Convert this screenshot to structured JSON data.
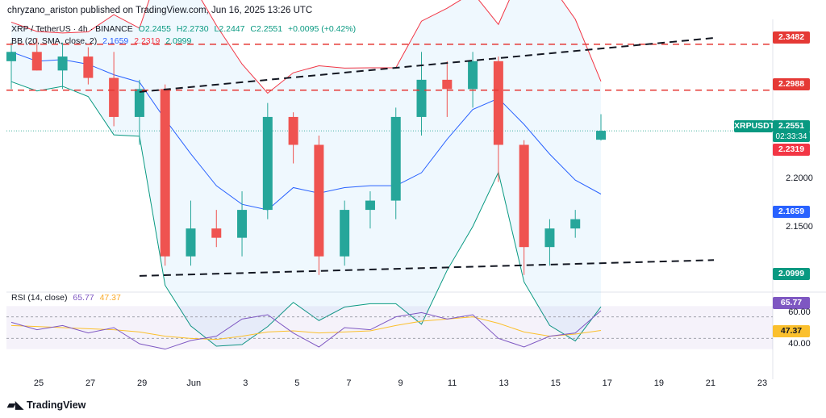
{
  "header": {
    "publisher_line": "chryzano_ariston published on TradingView.com, Jun 16, 2025 13:26 UTC"
  },
  "legend": {
    "symbol": "XRP / TetherUS · 4h · BINANCE",
    "open": "O2.2455",
    "high": "H2.2730",
    "low": "L2.2447",
    "close": "C2.2551",
    "change": "+0.0095 (+0.42%)",
    "bb_label": "BB (20, SMA, close, 2)",
    "bb_basis": "2.1659",
    "bb_upper": "2.2319",
    "bb_lower": "2.0999",
    "rsi_label": "RSI (14, close)",
    "rsi_value": "65.77",
    "rsi_ma": "47.37"
  },
  "price_axis": {
    "levels": [
      "2.2000",
      "2.1500"
    ],
    "tags": {
      "resistance_high": "2.3482",
      "resistance_low": "2.2988",
      "symbol": "XRPUSDT",
      "last_price": "2.2551",
      "countdown": "02:33:34",
      "bb_upper": "2.2319",
      "bb_basis": "2.1659",
      "bb_lower": "2.0999"
    }
  },
  "rsi_axis": {
    "value": "65.77",
    "ma": "47.37",
    "upper": "60.00",
    "lower": "40.00"
  },
  "time_axis": [
    "25",
    "27",
    "29",
    "Jun",
    "3",
    "5",
    "7",
    "9",
    "11",
    "13",
    "15",
    "17",
    "19",
    "21",
    "23"
  ],
  "brand": "TradingView",
  "colors": {
    "up": "#26a69a",
    "down": "#ef5350",
    "bb_upper": "#f23645",
    "bb_basis": "#2962ff",
    "bb_lower": "#089981",
    "rsi": "#7e57c2",
    "rsi_ma": "#fbc02d",
    "resistance": "#e53935"
  },
  "chart_data": {
    "type": "candlestick",
    "symbol": "XRP / TetherUS",
    "interval": "4h",
    "ylim": [
      2.085,
      2.375
    ],
    "resistance_levels": [
      2.3482,
      2.2988
    ],
    "trendlines": [
      {
        "from": [
          "May 29",
          2.297
        ],
        "to": [
          "Jun 20",
          2.355
        ]
      },
      {
        "from": [
          "May 29",
          2.099
        ],
        "to": [
          "Jun 20",
          2.116
        ]
      }
    ],
    "candles": [
      {
        "t": "May 24",
        "o": 2.33,
        "h": 2.35,
        "l": 2.3,
        "c": 2.34
      },
      {
        "t": "May 25",
        "o": 2.34,
        "h": 2.355,
        "l": 2.32,
        "c": 2.32
      },
      {
        "t": "May 26",
        "o": 2.32,
        "h": 2.35,
        "l": 2.3,
        "c": 2.335
      },
      {
        "t": "May 27",
        "o": 2.335,
        "h": 2.345,
        "l": 2.305,
        "c": 2.312
      },
      {
        "t": "May 28",
        "o": 2.312,
        "h": 2.34,
        "l": 2.26,
        "c": 2.27
      },
      {
        "t": "May 29",
        "o": 2.27,
        "h": 2.31,
        "l": 2.24,
        "c": 2.3
      },
      {
        "t": "May 30",
        "o": 2.3,
        "h": 2.305,
        "l": 2.11,
        "c": 2.12
      },
      {
        "t": "May 31",
        "o": 2.12,
        "h": 2.18,
        "l": 2.11,
        "c": 2.15
      },
      {
        "t": "Jun 1",
        "o": 2.15,
        "h": 2.17,
        "l": 2.13,
        "c": 2.14
      },
      {
        "t": "Jun 2",
        "o": 2.14,
        "h": 2.19,
        "l": 2.12,
        "c": 2.17
      },
      {
        "t": "Jun 3",
        "o": 2.17,
        "h": 2.285,
        "l": 2.16,
        "c": 2.27
      },
      {
        "t": "Jun 4",
        "o": 2.27,
        "h": 2.275,
        "l": 2.22,
        "c": 2.24
      },
      {
        "t": "Jun 5",
        "o": 2.24,
        "h": 2.25,
        "l": 2.1,
        "c": 2.12
      },
      {
        "t": "Jun 6",
        "o": 2.12,
        "h": 2.18,
        "l": 2.11,
        "c": 2.17
      },
      {
        "t": "Jun 7",
        "o": 2.17,
        "h": 2.19,
        "l": 2.15,
        "c": 2.18
      },
      {
        "t": "Jun 8",
        "o": 2.18,
        "h": 2.28,
        "l": 2.16,
        "c": 2.27
      },
      {
        "t": "Jun 9",
        "o": 2.27,
        "h": 2.34,
        "l": 2.25,
        "c": 2.31
      },
      {
        "t": "Jun 10",
        "o": 2.31,
        "h": 2.33,
        "l": 2.27,
        "c": 2.3
      },
      {
        "t": "Jun 11",
        "o": 2.3,
        "h": 2.34,
        "l": 2.28,
        "c": 2.33
      },
      {
        "t": "Jun 12",
        "o": 2.33,
        "h": 2.335,
        "l": 2.2,
        "c": 2.24
      },
      {
        "t": "Jun 13",
        "o": 2.24,
        "h": 2.245,
        "l": 2.1,
        "c": 2.13
      },
      {
        "t": "Jun 14",
        "o": 2.13,
        "h": 2.16,
        "l": 2.11,
        "c": 2.15
      },
      {
        "t": "Jun 15",
        "o": 2.15,
        "h": 2.17,
        "l": 2.14,
        "c": 2.16
      },
      {
        "t": "Jun 16",
        "o": 2.2455,
        "h": 2.273,
        "l": 2.2447,
        "c": 2.2551
      }
    ],
    "rsi": {
      "ylim": [
        20,
        80
      ],
      "bands": [
        60,
        40
      ],
      "values": [
        55,
        48,
        52,
        45,
        50,
        35,
        30,
        38,
        42,
        58,
        62,
        45,
        32,
        50,
        48,
        60,
        64,
        58,
        62,
        40,
        32,
        42,
        45,
        65.77
      ],
      "ma": [
        52,
        51,
        50,
        49,
        48,
        46,
        42,
        40,
        39,
        42,
        46,
        47,
        45,
        46,
        47,
        52,
        56,
        58,
        60,
        54,
        46,
        42,
        44,
        47.37
      ]
    }
  }
}
